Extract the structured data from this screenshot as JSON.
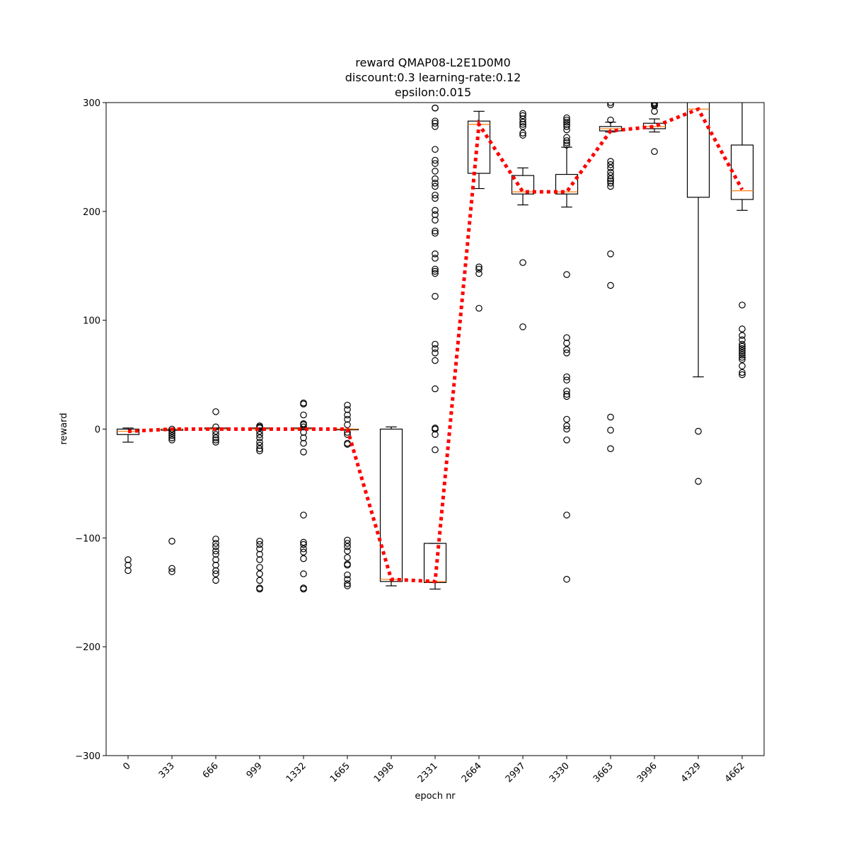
{
  "chart_data": {
    "type": "box",
    "title_lines": [
      "reward QMAP08-L2E1D0M0",
      "discount:0.3 learning-rate:0.12",
      "epsilon:0.015"
    ],
    "xlabel": "epoch nr",
    "ylabel": "reward",
    "ylim": [
      -300,
      300
    ],
    "yticks": [
      -300,
      -200,
      -100,
      0,
      100,
      200,
      300
    ],
    "categories": [
      "0",
      "333",
      "666",
      "999",
      "1332",
      "1665",
      "1998",
      "2331",
      "2664",
      "2997",
      "3330",
      "3663",
      "3996",
      "4329",
      "4662"
    ],
    "boxes": [
      {
        "q1": -5,
        "median": -2,
        "q3": 0,
        "whislo": -12,
        "whishi": 1,
        "fliers": [
          -120,
          -125,
          -130
        ]
      },
      {
        "q1": -1,
        "median": 0,
        "q3": 0,
        "whislo": -1,
        "whishi": 0,
        "fliers": [
          0,
          -2,
          -4,
          -6,
          -8,
          -10,
          -103,
          -128,
          -131
        ]
      },
      {
        "q1": 0,
        "median": 0,
        "q3": 1,
        "whislo": 0,
        "whishi": 1,
        "fliers": [
          16,
          2,
          -2,
          -5,
          -8,
          -10,
          -12,
          -101,
          -105,
          -108,
          -112,
          -115,
          -120,
          -125,
          -130,
          -133,
          -139
        ]
      },
      {
        "q1": 0,
        "median": 0,
        "q3": 1,
        "whislo": 0,
        "whishi": 1,
        "fliers": [
          3,
          2,
          1,
          -2,
          -5,
          -8,
          -12,
          -15,
          -18,
          -20,
          -103,
          -106,
          -110,
          -115,
          -120,
          -127,
          -133,
          -139,
          -146,
          -147
        ]
      },
      {
        "q1": 0,
        "median": 0,
        "q3": 1,
        "whislo": 0,
        "whishi": 1,
        "fliers": [
          24,
          23,
          13,
          5,
          4,
          2,
          -3,
          -8,
          -13,
          -21,
          -79,
          -104,
          -106,
          -110,
          -113,
          -119,
          -133,
          -146,
          -147
        ]
      },
      {
        "q1": 0,
        "median": 0,
        "q3": 0,
        "whislo": 0,
        "whishi": 0,
        "fliers": [
          22,
          18,
          13,
          9,
          4,
          -3,
          -5,
          -13,
          -14,
          -102,
          -105,
          -108,
          -112,
          -118,
          -124,
          -125,
          -134,
          -138,
          -142,
          -144
        ]
      },
      {
        "q1": -140,
        "median": -138,
        "q3": 0,
        "whislo": -144,
        "whishi": 2,
        "fliers": []
      },
      {
        "q1": -141,
        "median": -140,
        "q3": -105,
        "whislo": -147,
        "whishi": -105,
        "fliers": [
          295,
          295,
          283,
          281,
          278,
          257,
          247,
          244,
          237,
          230,
          226,
          223,
          215,
          212,
          201,
          197,
          192,
          182,
          180,
          161,
          157,
          147,
          145,
          143,
          122,
          78,
          74,
          70,
          63,
          37,
          1,
          0,
          0,
          -5,
          -19
        ]
      },
      {
        "q1": 235,
        "median": 280,
        "q3": 283,
        "whislo": 221,
        "whishi": 292,
        "fliers": [
          149,
          147,
          143,
          111
        ]
      },
      {
        "q1": 216,
        "median": 218,
        "q3": 233,
        "whislo": 206,
        "whishi": 240,
        "fliers": [
          290,
          288,
          285,
          282,
          280,
          278,
          272,
          270,
          153,
          94
        ]
      },
      {
        "q1": 216,
        "median": 218,
        "q3": 234,
        "whislo": 204,
        "whishi": 259,
        "fliers": [
          286,
          284,
          282,
          280,
          278,
          275,
          268,
          265,
          263,
          261,
          142,
          84,
          79,
          73,
          70,
          48,
          45,
          35,
          32,
          30,
          9,
          3,
          0,
          -10,
          -79,
          -138
        ]
      },
      {
        "q1": 274,
        "median": 276,
        "q3": 278,
        "whislo": 273,
        "whishi": 282,
        "fliers": [
          300,
          298,
          284,
          246,
          243,
          240,
          236,
          233,
          230,
          228,
          226,
          223,
          161,
          132,
          11,
          -1,
          -18
        ]
      },
      {
        "q1": 276,
        "median": 278,
        "q3": 281,
        "whislo": 273,
        "whishi": 285,
        "fliers": [
          300,
          299,
          298,
          297,
          292,
          255
        ]
      },
      {
        "q1": 213,
        "median": 294,
        "q3": 305,
        "whislo": 48,
        "whishi": 320,
        "fliers": [
          -2,
          -48
        ]
      },
      {
        "q1": 211,
        "median": 219,
        "q3": 261,
        "whislo": 201,
        "whishi": 305,
        "fliers": [
          114,
          92,
          86,
          82,
          78,
          76,
          74,
          72,
          70,
          68,
          66,
          64,
          58,
          52,
          50
        ]
      }
    ],
    "mean_line": {
      "name": "mean",
      "values": [
        -2,
        0,
        0,
        0,
        0,
        0,
        -138,
        -140,
        280,
        218,
        218,
        274,
        278,
        294,
        220
      ],
      "color": "#ff0000",
      "style": "dotted"
    },
    "colors": {
      "box": "#000000",
      "median": "#ff7f0e",
      "mean_line": "#ff0000"
    },
    "grid": false,
    "legend": false
  }
}
